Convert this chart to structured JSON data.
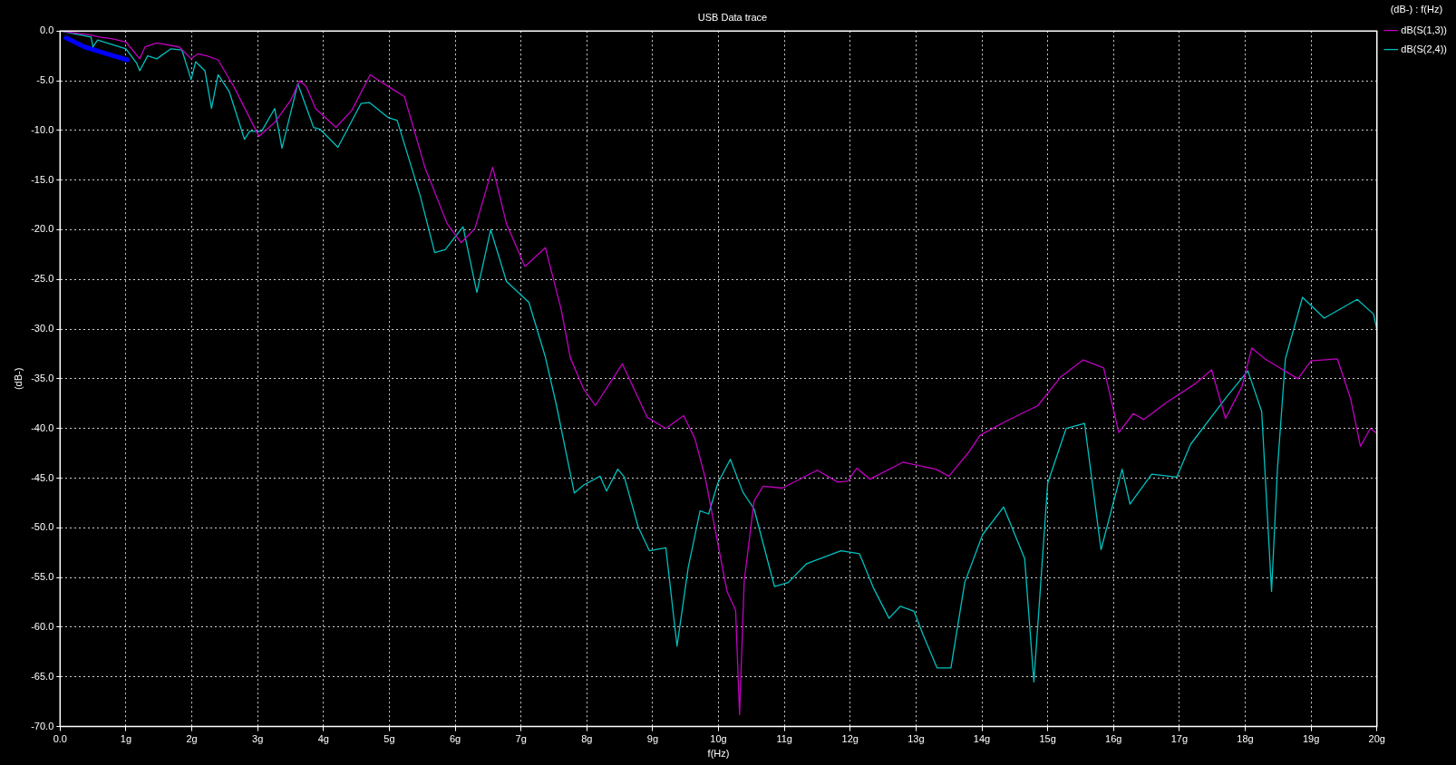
{
  "chart_data": {
    "type": "line",
    "title": "USB Data trace",
    "xlabel": "f(Hz)",
    "ylabel": "(dB-)",
    "legend_title": "(dB-) : f(Hz)",
    "legend": "top right",
    "grid": true,
    "marker": "none",
    "xlim": [
      0,
      20
    ],
    "xticks": [
      {
        "value": 0,
        "label": "0.0"
      },
      {
        "value": 1,
        "label": "1g"
      },
      {
        "value": 2,
        "label": "2g"
      },
      {
        "value": 3,
        "label": "3g"
      },
      {
        "value": 4,
        "label": "4g"
      },
      {
        "value": 5,
        "label": "5g"
      },
      {
        "value": 6,
        "label": "6g"
      },
      {
        "value": 7,
        "label": "7g"
      },
      {
        "value": 8,
        "label": "8g"
      },
      {
        "value": 9,
        "label": "9g"
      },
      {
        "value": 10,
        "label": "10g"
      },
      {
        "value": 11,
        "label": "11g"
      },
      {
        "value": 12,
        "label": "12g"
      },
      {
        "value": 13,
        "label": "13g"
      },
      {
        "value": 14,
        "label": "14g"
      },
      {
        "value": 15,
        "label": "15g"
      },
      {
        "value": 16,
        "label": "16g"
      },
      {
        "value": 17,
        "label": "17g"
      },
      {
        "value": 18,
        "label": "18g"
      },
      {
        "value": 19,
        "label": "19g"
      },
      {
        "value": 20,
        "label": "20g"
      }
    ],
    "ylim": [
      -70,
      0
    ],
    "yticks": [
      {
        "value": -70,
        "label": "-70.0"
      },
      {
        "value": -65,
        "label": "-65.0"
      },
      {
        "value": -60,
        "label": "-60.0"
      },
      {
        "value": -55,
        "label": "-55.0"
      },
      {
        "value": -50,
        "label": "-50.0"
      },
      {
        "value": -45,
        "label": "-45.0"
      },
      {
        "value": -40,
        "label": "-40.0"
      },
      {
        "value": -35,
        "label": "-35.0"
      },
      {
        "value": -30,
        "label": "-30.0"
      },
      {
        "value": -25,
        "label": "-25.0"
      },
      {
        "value": -20,
        "label": "-20.0"
      },
      {
        "value": -15,
        "label": "-15.0"
      },
      {
        "value": -10,
        "label": "-10.0"
      },
      {
        "value": -5,
        "label": "-5.0"
      },
      {
        "value": 0,
        "label": "0.0"
      }
    ],
    "series": [
      {
        "name": "dB(S(1,3))",
        "color": "#c000c0",
        "x": [
          0,
          0.47,
          0.6,
          0.8,
          1.0,
          1.21,
          1.29,
          1.47,
          1.81,
          1.99,
          2.09,
          2.23,
          2.4,
          2.64,
          3.02,
          3.26,
          3.5,
          3.64,
          3.74,
          3.88,
          4.19,
          4.43,
          4.71,
          5.06,
          5.23,
          5.54,
          5.88,
          6.09,
          6.3,
          6.57,
          6.78,
          7.06,
          7.37,
          7.61,
          7.75,
          7.95,
          8.13,
          8.54,
          8.92,
          9.2,
          9.47,
          9.64,
          9.8,
          10.13,
          10.26,
          10.32,
          10.39,
          10.54,
          10.68,
          10.97,
          11.5,
          11.81,
          11.96,
          12.1,
          12.3,
          12.8,
          13.3,
          13.5,
          13.8,
          13.97,
          14.36,
          14.85,
          15.2,
          15.54,
          15.85,
          16.08,
          16.3,
          16.46,
          16.8,
          17.24,
          17.49,
          17.7,
          17.95,
          18.1,
          18.3,
          18.8,
          19.0,
          19.4,
          19.6,
          19.75,
          19.9,
          20
        ],
        "values": [
          0,
          -0.4,
          -0.6,
          -0.8,
          -1.1,
          -2.8,
          -1.6,
          -1.2,
          -1.6,
          -2.8,
          -2.3,
          -2.5,
          -2.9,
          -5.6,
          -10.6,
          -9.2,
          -7,
          -5,
          -5.6,
          -7.8,
          -9.7,
          -8,
          -4.4,
          -5.9,
          -6.6,
          -13.7,
          -19.4,
          -21.3,
          -19.9,
          -13.7,
          -19.4,
          -23.7,
          -21.8,
          -28,
          -32.9,
          -36,
          -37.7,
          -33.5,
          -38.9,
          -40,
          -38.7,
          -41,
          -45,
          -56.4,
          -58.3,
          -68.8,
          -55.4,
          -47.3,
          -45.8,
          -46,
          -44.2,
          -45.4,
          -45.3,
          -44,
          -45.1,
          -43.4,
          -44.1,
          -44.8,
          -42.4,
          -40.7,
          -39.3,
          -37.7,
          -34.8,
          -33.1,
          -33.9,
          -40.4,
          -38.5,
          -39.1,
          -37.4,
          -35.5,
          -34.1,
          -39,
          -35.8,
          -31.9,
          -33,
          -35,
          -33.2,
          -33,
          -37,
          -41.8,
          -40,
          -40.5
        ]
      },
      {
        "name": "dB(S(2,4))",
        "color": "#00c0c0",
        "x": [
          0,
          0.47,
          0.5,
          0.57,
          1.0,
          1.16,
          1.21,
          1.33,
          1.47,
          1.68,
          1.85,
          1.99,
          2.06,
          2.2,
          2.3,
          2.4,
          2.57,
          2.8,
          2.88,
          3.06,
          3.26,
          3.37,
          3.61,
          3.85,
          3.95,
          4.22,
          4.57,
          4.7,
          4.98,
          5.12,
          5.47,
          5.69,
          5.85,
          6.12,
          6.33,
          6.54,
          6.78,
          7.12,
          7.37,
          7.54,
          7.81,
          7.95,
          8.2,
          8.3,
          8.47,
          8.57,
          8.78,
          8.95,
          9.2,
          9.37,
          9.54,
          9.72,
          9.85,
          9.99,
          10.18,
          10.37,
          10.54,
          10.85,
          11.06,
          11.34,
          11.86,
          12.14,
          12.35,
          12.59,
          12.76,
          12.97,
          13.11,
          13.32,
          13.53,
          13.74,
          14.01,
          14.33,
          14.65,
          14.79,
          15.0,
          15.28,
          15.56,
          15.81,
          16.13,
          16.25,
          16.58,
          16.96,
          17.17,
          17.72,
          18.04,
          18.25,
          18.4,
          18.49,
          18.61,
          18.87,
          19.2,
          19.7,
          19.95,
          20
        ],
        "values": [
          0,
          -0.6,
          -1.6,
          -0.9,
          -1.8,
          -3.2,
          -4,
          -2.5,
          -2.8,
          -1.8,
          -1.9,
          -4.9,
          -3.1,
          -4,
          -7.8,
          -4.4,
          -6.1,
          -10.9,
          -10.1,
          -10.1,
          -7.8,
          -11.8,
          -5.3,
          -9.7,
          -9.9,
          -11.7,
          -7.3,
          -7.2,
          -8.7,
          -9,
          -16.6,
          -22.3,
          -22,
          -19.7,
          -26.3,
          -20,
          -25.2,
          -27.3,
          -32.8,
          -37.7,
          -46.5,
          -45.7,
          -44.8,
          -46.3,
          -44.1,
          -44.9,
          -49.9,
          -52.3,
          -52,
          -61.9,
          -54,
          -48.3,
          -48.6,
          -45.5,
          -43.1,
          -46.4,
          -48.1,
          -55.9,
          -55.5,
          -53.6,
          -52.3,
          -52.6,
          -56,
          -59.1,
          -57.9,
          -58.4,
          -60.8,
          -64.1,
          -64.1,
          -55.5,
          -50.7,
          -47.9,
          -53.1,
          -65.5,
          -45.5,
          -40,
          -39.5,
          -52.2,
          -44.1,
          -47.6,
          -44.6,
          -44.9,
          -41.6,
          -36.8,
          -34.2,
          -38.3,
          -56.4,
          -44,
          -33,
          -26.8,
          -28.9,
          -27,
          -28.5,
          -30.1
        ]
      },
      {
        "color": "#0000ff",
        "x": [
          0.09,
          0.37,
          0.71,
          1.02
        ],
        "values": [
          -0.7,
          -1.6,
          -2.3,
          -2.9
        ]
      }
    ]
  }
}
